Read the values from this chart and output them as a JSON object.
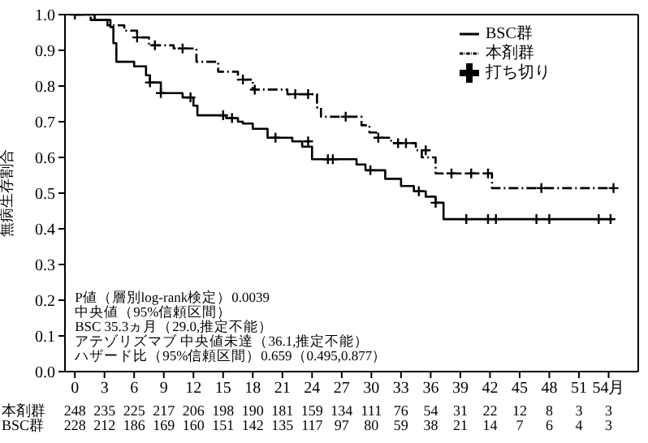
{
  "chart_data": {
    "type": "step",
    "ylabel": "無病生存割合",
    "xlim": [
      -1,
      57
    ],
    "ylim": [
      0,
      1
    ],
    "xticks": [
      0,
      3,
      6,
      9,
      12,
      15,
      18,
      21,
      24,
      27,
      30,
      33,
      36,
      39,
      42,
      45,
      48,
      51,
      {
        "value": 54,
        "label": "54月"
      }
    ],
    "yticks": [
      {
        "value": 0,
        "label": "0.0"
      },
      0.1,
      0.2,
      0.3,
      0.4,
      0.5,
      0.6,
      0.7,
      0.8,
      0.9,
      {
        "value": 1,
        "label": "1.0"
      }
    ],
    "grid": false,
    "legend": "top right",
    "series": [
      {
        "name": "BSC群",
        "color": "#000000",
        "line_style": "solid",
        "x": [
          0,
          2,
          3.6,
          3.9,
          4.2,
          6,
          7.2,
          7.6,
          8.7,
          10.9,
          12,
          12.4,
          15.3,
          16.5,
          17,
          18,
          19.5,
          22,
          23,
          24,
          28.5,
          29.4,
          31.4,
          33,
          34.3,
          35.5,
          36.5,
          37.3,
          54.5
        ],
        "values": [
          1,
          0.985,
          0.965,
          0.92,
          0.868,
          0.855,
          0.83,
          0.81,
          0.78,
          0.768,
          0.745,
          0.718,
          0.71,
          0.7,
          0.695,
          0.68,
          0.655,
          0.645,
          0.63,
          0.595,
          0.58,
          0.564,
          0.54,
          0.52,
          0.505,
          0.49,
          0.473,
          0.427,
          0.427
        ]
      },
      {
        "name": "本剤群",
        "color": "#000000",
        "line_style": "dashed",
        "x": [
          0,
          1.6,
          3.3,
          5,
          6.3,
          7.5,
          10,
          12.3,
          14.5,
          16.5,
          18,
          21.5,
          24.5,
          24.9,
          29,
          29.8,
          30.5,
          32,
          34.5,
          35.1,
          36.5,
          42.2,
          54.5
        ],
        "values": [
          1,
          0.985,
          0.97,
          0.955,
          0.936,
          0.914,
          0.905,
          0.868,
          0.84,
          0.818,
          0.79,
          0.777,
          0.74,
          0.714,
          0.69,
          0.67,
          0.655,
          0.64,
          0.62,
          0.6,
          0.555,
          0.514,
          0.514
        ]
      },
      {
        "name": "打ち切り",
        "type": "scatter",
        "marker": "cross",
        "color": "#000000",
        "x": [
          0,
          6.3,
          8.1,
          10.9,
          17,
          18.2,
          22.3,
          23.6,
          27.4,
          30.7,
          32.7,
          33.5,
          35.5,
          38.1,
          40.1,
          41.8,
          47.2,
          54.5,
          7.6,
          8.7,
          11.7,
          15,
          15.9,
          20.3,
          23.6,
          25.6,
          26.1,
          29.9,
          34.8,
          36.5,
          39.6,
          41.8,
          42.6,
          46.7,
          48,
          53,
          54.2
        ],
        "values": [
          1,
          0.936,
          0.914,
          0.905,
          0.818,
          0.79,
          0.777,
          0.777,
          0.714,
          0.655,
          0.64,
          0.64,
          0.62,
          0.555,
          0.555,
          0.555,
          0.514,
          0.514,
          0.81,
          0.78,
          0.768,
          0.718,
          0.71,
          0.655,
          0.645,
          0.595,
          0.595,
          0.564,
          0.505,
          0.473,
          0.427,
          0.427,
          0.427,
          0.427,
          0.427,
          0.427,
          0.427
        ]
      }
    ],
    "annotations": [
      "P値（層別log-rank検定）0.0039",
      "中央値（95%信頼区間）",
      "BSC 35.3ヵ月（29.0,推定不能）",
      "アテゾリズマブ 中央値未達（36.1,推定不能）",
      "ハザード比（95%信頼区間）0.659（0.495,0.877）",
      "本剤群 248 235 225 217 206 198 190 181 159 134 111 76 54 31 22 12 8 3 3",
      "BSC群 228 212 186 169 160 151 142 135 117 97 80 59 38 21 14 7 6 4 3"
    ]
  }
}
